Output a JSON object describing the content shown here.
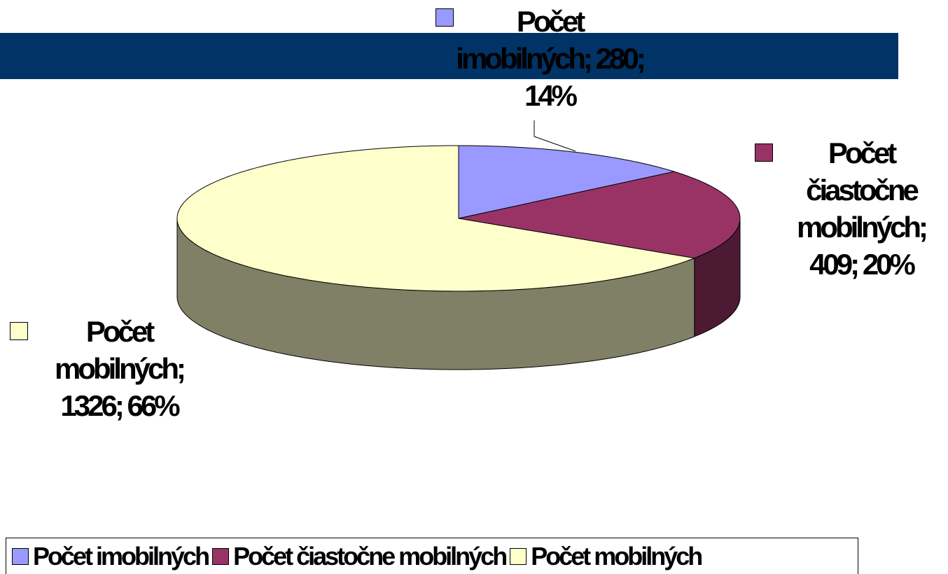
{
  "chart_data": {
    "type": "pie3d",
    "categories": [
      "Počet imobilných",
      "Počet čiastočne mobilných",
      "Počet mobilných"
    ],
    "values": [
      280,
      409,
      1326
    ],
    "value_labels": [
      "Počet imobilných; 280; 14%",
      "Počet čiastočne mobilných; 409; 20%",
      "Počet mobilných; 1326; 66%"
    ],
    "colors": [
      "#9999ff",
      "#993366",
      "#ffffcc"
    ],
    "side_colors": [
      "#4d4d80",
      "#4d1a33",
      "#808066"
    ],
    "legend": "bottom"
  }
}
